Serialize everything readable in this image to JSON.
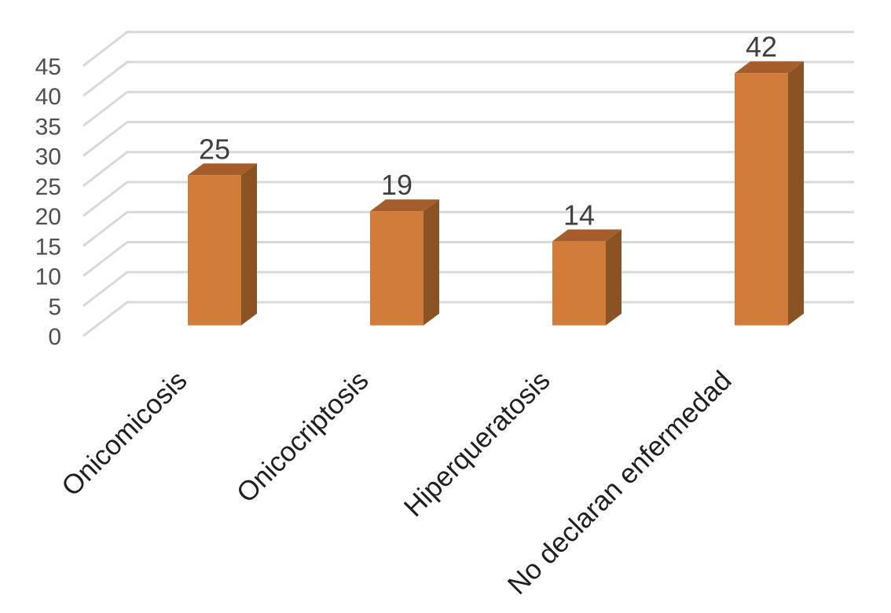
{
  "chart_data": {
    "type": "bar",
    "variant": "3d-column",
    "title": "",
    "xlabel": "",
    "ylabel": "",
    "categories": [
      "Onicomicosis",
      "Onicocriptosis",
      "Hiperqueratosis",
      "No declaran enfermedad"
    ],
    "values": [
      25,
      19,
      14,
      42
    ],
    "data_labels": [
      "25",
      "19",
      "14",
      "42"
    ],
    "yticks": [
      0,
      5,
      10,
      15,
      20,
      25,
      30,
      35,
      40,
      45
    ],
    "ylim": [
      0,
      45
    ],
    "ytick_step": 5,
    "grid": true,
    "legend_position": "none",
    "category_label_rotation_deg": -45,
    "colors": {
      "bar_front": "#D17C3A",
      "bar_top": "#A55E2B",
      "bar_side": "#8B5323",
      "gridline": "#D9D9D9",
      "axis_tick_text": "#4F4F4F",
      "data_label_text": "#3F3F3F",
      "category_label_text": "#1F1F1F",
      "background": "#FFFFFF"
    }
  }
}
